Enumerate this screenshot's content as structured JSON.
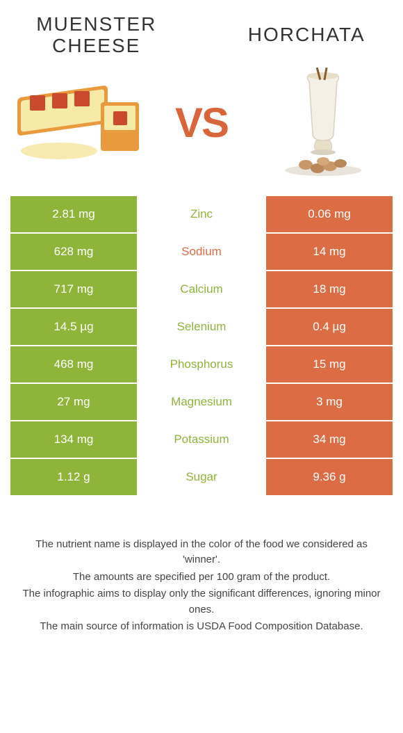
{
  "header": {
    "left_title": "Muenster cheese",
    "right_title": "Horchata",
    "vs_label": "VS"
  },
  "colors": {
    "left_bg": "#8fb43a",
    "right_bg": "#db6c44",
    "left_text": "#8fb43a",
    "right_text": "#db6c44",
    "vs_color": "#d9663b"
  },
  "rows": [
    {
      "left": "2.81 mg",
      "label": "Zinc",
      "right": "0.06 mg",
      "winner": "left"
    },
    {
      "left": "628 mg",
      "label": "Sodium",
      "right": "14 mg",
      "winner": "right"
    },
    {
      "left": "717 mg",
      "label": "Calcium",
      "right": "18 mg",
      "winner": "left"
    },
    {
      "left": "14.5 µg",
      "label": "Selenium",
      "right": "0.4 µg",
      "winner": "left"
    },
    {
      "left": "468 mg",
      "label": "Phosphorus",
      "right": "15 mg",
      "winner": "left"
    },
    {
      "left": "27 mg",
      "label": "Magnesium",
      "right": "3 mg",
      "winner": "left"
    },
    {
      "left": "134 mg",
      "label": "Potassium",
      "right": "34 mg",
      "winner": "left"
    },
    {
      "left": "1.12 g",
      "label": "Sugar",
      "right": "9.36 g",
      "winner": "left"
    }
  ],
  "footnotes": [
    "The nutrient name is displayed in the color of the food we considered as 'winner'.",
    "The amounts are specified per 100 gram of the product.",
    "The infographic aims to display only the significant differences, ignoring minor ones.",
    "The main source of information is USDA Food Composition Database."
  ]
}
